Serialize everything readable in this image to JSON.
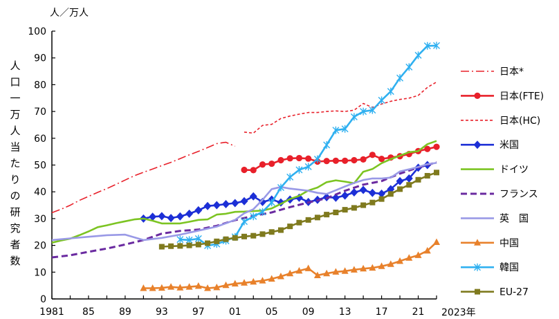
{
  "chart_data": {
    "type": "line",
    "unit_label": "人／万人",
    "ylabel": "人口一万人当たりの研究者数",
    "x_end_label": "2023年",
    "ylim": [
      0,
      100
    ],
    "yticks": [
      0,
      10,
      20,
      30,
      40,
      50,
      60,
      70,
      80,
      90,
      100
    ],
    "xlim": [
      1981,
      2023
    ],
    "xticks": [
      {
        "x": 1981,
        "label": "1981"
      },
      {
        "x": 1985,
        "label": "85"
      },
      {
        "x": 1989,
        "label": "89"
      },
      {
        "x": 1993,
        "label": "93"
      },
      {
        "x": 1997,
        "label": "97"
      },
      {
        "x": 2001,
        "label": "01"
      },
      {
        "x": 2005,
        "label": "05"
      },
      {
        "x": 2009,
        "label": "09"
      },
      {
        "x": 2013,
        "label": "13"
      },
      {
        "x": 2017,
        "label": "17"
      },
      {
        "x": 2021,
        "label": "21"
      }
    ],
    "series": [
      {
        "name": "日本*",
        "color": "#e8202a",
        "style": "dashdot",
        "marker": "none",
        "x": [
          1981,
          1982,
          1983,
          1984,
          1985,
          1986,
          1987,
          1988,
          1989,
          1990,
          1991,
          1992,
          1993,
          1994,
          1995,
          1996,
          1997,
          1998,
          1999,
          2000,
          2001
        ],
        "y": [
          32.2,
          33.5,
          35.0,
          36.8,
          38.3,
          39.8,
          41.2,
          42.8,
          44.4,
          46.0,
          47.3,
          48.5,
          49.8,
          51.0,
          52.4,
          53.8,
          55.1,
          56.5,
          58.0,
          58.5,
          57.0
        ]
      },
      {
        "name": "日本(FTE)",
        "color": "#e8202a",
        "style": "solid",
        "marker": "circle",
        "x": [
          2002,
          2003,
          2004,
          2005,
          2006,
          2007,
          2008,
          2009,
          2010,
          2011,
          2012,
          2013,
          2014,
          2015,
          2016,
          2017,
          2018,
          2019,
          2020,
          2021,
          2022,
          2023
        ],
        "y": [
          48.2,
          48.1,
          50.2,
          50.5,
          51.8,
          52.5,
          52.6,
          52.4,
          51.3,
          51.5,
          51.6,
          51.6,
          51.8,
          52.1,
          53.8,
          52.3,
          52.8,
          53.3,
          54.1,
          55.2,
          56.0,
          56.8
        ]
      },
      {
        "name": "日本(HC)",
        "color": "#e8202a",
        "style": "dotted",
        "marker": "none",
        "x": [
          2002,
          2003,
          2004,
          2005,
          2006,
          2007,
          2008,
          2009,
          2010,
          2011,
          2012,
          2013,
          2014,
          2015,
          2016,
          2017,
          2018,
          2019,
          2020,
          2021,
          2022,
          2023
        ],
        "y": [
          62.3,
          61.9,
          64.8,
          65.2,
          67.4,
          68.3,
          69.0,
          69.6,
          69.6,
          70.0,
          70.2,
          70.0,
          70.5,
          73.0,
          71.5,
          72.8,
          73.8,
          74.5,
          75.0,
          76.0,
          79.0,
          81.0
        ]
      },
      {
        "name": "米国",
        "color": "#1c2fd6",
        "style": "solid",
        "marker": "diamond",
        "x": [
          1991,
          1992,
          1993,
          1994,
          1995,
          1996,
          1997,
          1998,
          1999,
          2000,
          2001,
          2002,
          2003,
          2004,
          2005,
          2006,
          2007,
          2008,
          2009,
          2010,
          2011,
          2012,
          2013,
          2014,
          2015,
          2016,
          2017,
          2018,
          2019,
          2020,
          2021,
          2022
        ],
        "y": [
          30.0,
          30.7,
          30.9,
          30.2,
          30.8,
          31.8,
          33.1,
          34.7,
          35.0,
          35.4,
          35.8,
          36.5,
          38.3,
          36.2,
          37.1,
          36.0,
          37.1,
          37.8,
          36.2,
          37.0,
          38.0,
          37.8,
          38.6,
          39.8,
          40.7,
          39.6,
          39.3,
          41.0,
          44.0,
          45.0,
          49.0,
          50.0
        ]
      },
      {
        "name": "ドイツ",
        "color": "#7cc422",
        "style": "solid",
        "marker": "none",
        "x": [
          1981,
          1982,
          1983,
          1984,
          1985,
          1986,
          1987,
          1988,
          1989,
          1990,
          1991,
          1992,
          1993,
          1994,
          1995,
          1996,
          1997,
          1998,
          1999,
          2000,
          2001,
          2002,
          2003,
          2004,
          2005,
          2006,
          2007,
          2008,
          2009,
          2010,
          2011,
          2012,
          2013,
          2014,
          2015,
          2016,
          2017,
          2018,
          2019,
          2020,
          2021,
          2022,
          2023
        ],
        "y": [
          21.0,
          21.8,
          22.5,
          23.8,
          25.2,
          26.8,
          27.5,
          28.3,
          29.0,
          29.7,
          30.0,
          29.2,
          28.2,
          28.2,
          28.2,
          28.8,
          29.5,
          29.7,
          31.5,
          31.8,
          32.5,
          32.6,
          32.8,
          33.0,
          33.8,
          35.5,
          37.3,
          38.5,
          40.5,
          41.6,
          43.6,
          44.3,
          43.8,
          43.2,
          47.5,
          48.5,
          50.7,
          52.2,
          53.5,
          54.8,
          55.2,
          57.8,
          59.0
        ]
      },
      {
        "name": "フランス",
        "color": "#6a2aa0",
        "style": "dashed",
        "marker": "none",
        "x": [
          1981,
          1983,
          1985,
          1987,
          1989,
          1991,
          1993,
          1995,
          1997,
          1999,
          2001,
          2003,
          2005,
          2007,
          2009,
          2011,
          2013,
          2015,
          2017,
          2019,
          2021,
          2023
        ],
        "y": [
          15.5,
          16.3,
          17.6,
          18.8,
          20.3,
          22.0,
          24.4,
          25.4,
          25.9,
          27.3,
          29.4,
          31.0,
          32.3,
          34.3,
          36.0,
          37.6,
          40.4,
          42.7,
          44.0,
          46.8,
          49.1,
          51.0
        ]
      },
      {
        "name": "英　国",
        "color": "#9999e6",
        "style": "solid",
        "marker": "none",
        "x": [
          1981,
          1983,
          1985,
          1987,
          1989,
          1991,
          1993,
          1995,
          1997,
          1999,
          2001,
          2002,
          2003,
          2004,
          2005,
          2006,
          2007,
          2008,
          2009,
          2010,
          2011,
          2012,
          2013,
          2014,
          2015,
          2016,
          2017,
          2018,
          2019,
          2020,
          2021,
          2022,
          2023
        ],
        "y": [
          22.0,
          22.6,
          23.2,
          23.8,
          24.0,
          22.0,
          22.8,
          24.0,
          25.5,
          27.0,
          29.5,
          32.0,
          33.5,
          37.0,
          41.0,
          41.8,
          41.2,
          40.8,
          40.4,
          39.6,
          39.2,
          40.6,
          42.0,
          43.3,
          44.4,
          45.0,
          45.0,
          45.3,
          47.6,
          48.4,
          49.3,
          50.3,
          50.8
        ]
      },
      {
        "name": "中国",
        "color": "#e8812b",
        "style": "solid",
        "marker": "triangle",
        "x": [
          1991,
          1992,
          1993,
          1994,
          1995,
          1996,
          1997,
          1998,
          1999,
          2000,
          2001,
          2002,
          2003,
          2004,
          2005,
          2006,
          2007,
          2008,
          2009,
          2010,
          2011,
          2012,
          2013,
          2014,
          2015,
          2016,
          2017,
          2018,
          2019,
          2020,
          2021,
          2022,
          2023
        ],
        "y": [
          4.0,
          4.0,
          4.1,
          4.5,
          4.2,
          4.5,
          4.8,
          4.0,
          4.3,
          5.1,
          5.7,
          6.0,
          6.4,
          6.8,
          7.5,
          8.4,
          9.5,
          10.5,
          11.4,
          8.8,
          9.5,
          10.1,
          10.4,
          10.9,
          11.3,
          11.6,
          12.2,
          13.0,
          14.1,
          15.3,
          16.3,
          18.0,
          21.2
        ]
      },
      {
        "name": "韓国",
        "color": "#2fb0f0",
        "style": "solid",
        "marker": "star",
        "x": [
          1995,
          1996,
          1997,
          1998,
          1999,
          2000,
          2001,
          2002,
          2003,
          2004,
          2005,
          2006,
          2007,
          2008,
          2009,
          2010,
          2011,
          2012,
          2013,
          2014,
          2015,
          2016,
          2017,
          2018,
          2019,
          2020,
          2021,
          2022,
          2023
        ],
        "y": [
          22.2,
          22.0,
          22.5,
          19.9,
          20.5,
          21.7,
          23.2,
          28.9,
          30.8,
          32.5,
          36.0,
          41.6,
          45.5,
          48.2,
          49.4,
          52.2,
          57.5,
          63.0,
          63.5,
          68.0,
          70.0,
          70.5,
          74.2,
          77.5,
          82.5,
          86.6,
          91.0,
          94.5,
          94.6
        ]
      },
      {
        "name": "EU-27",
        "color": "#7f7a1e",
        "style": "solid",
        "marker": "square",
        "x": [
          1993,
          1994,
          1995,
          1996,
          1997,
          1998,
          1999,
          2000,
          2001,
          2002,
          2003,
          2004,
          2005,
          2006,
          2007,
          2008,
          2009,
          2010,
          2011,
          2012,
          2013,
          2014,
          2015,
          2016,
          2017,
          2018,
          2019,
          2020,
          2021,
          2022,
          2023
        ],
        "y": [
          19.5,
          19.7,
          19.8,
          20.0,
          20.3,
          20.8,
          21.5,
          22.3,
          22.8,
          23.3,
          23.6,
          24.2,
          25.0,
          25.7,
          27.1,
          28.5,
          29.5,
          30.4,
          31.5,
          32.3,
          33.3,
          34.0,
          35.0,
          36.0,
          37.3,
          39.2,
          41.0,
          42.6,
          44.5,
          46.0,
          47.2
        ]
      }
    ],
    "legend_position": "right",
    "grid": false
  }
}
